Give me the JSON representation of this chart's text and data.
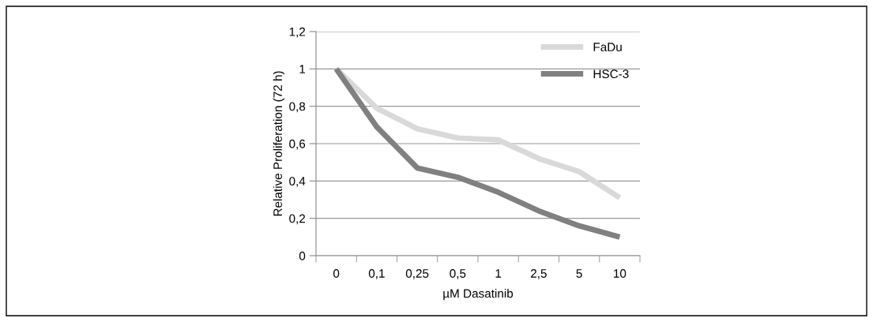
{
  "chart_data": {
    "type": "line",
    "xlabel": "µM Dasatinib",
    "ylabel": "Relative Proliferation (72 h)",
    "categories": [
      "0",
      "0,1",
      "0,25",
      "0,5",
      "1",
      "2,5",
      "5",
      "10"
    ],
    "series": [
      {
        "name": "FaDu",
        "color": "#d9d9d9",
        "values": [
          1.0,
          0.79,
          0.68,
          0.63,
          0.62,
          0.52,
          0.45,
          0.31
        ]
      },
      {
        "name": "HSC-3",
        "color": "#808080",
        "values": [
          1.0,
          0.69,
          0.47,
          0.42,
          0.34,
          0.24,
          0.16,
          0.1
        ]
      }
    ],
    "ylim": [
      0,
      1.2
    ],
    "yticks": [
      0,
      {
        "value": 0.2,
        "label": "0,2"
      },
      {
        "value": 0.4,
        "label": "0,4"
      },
      {
        "value": 0.6,
        "label": "0,6"
      },
      {
        "value": 0.8,
        "label": "0,8"
      },
      1,
      {
        "value": 1.2,
        "label": "1,2"
      }
    ],
    "grid": "y",
    "legend": "top right",
    "marker": "none",
    "line_style": "solid"
  }
}
